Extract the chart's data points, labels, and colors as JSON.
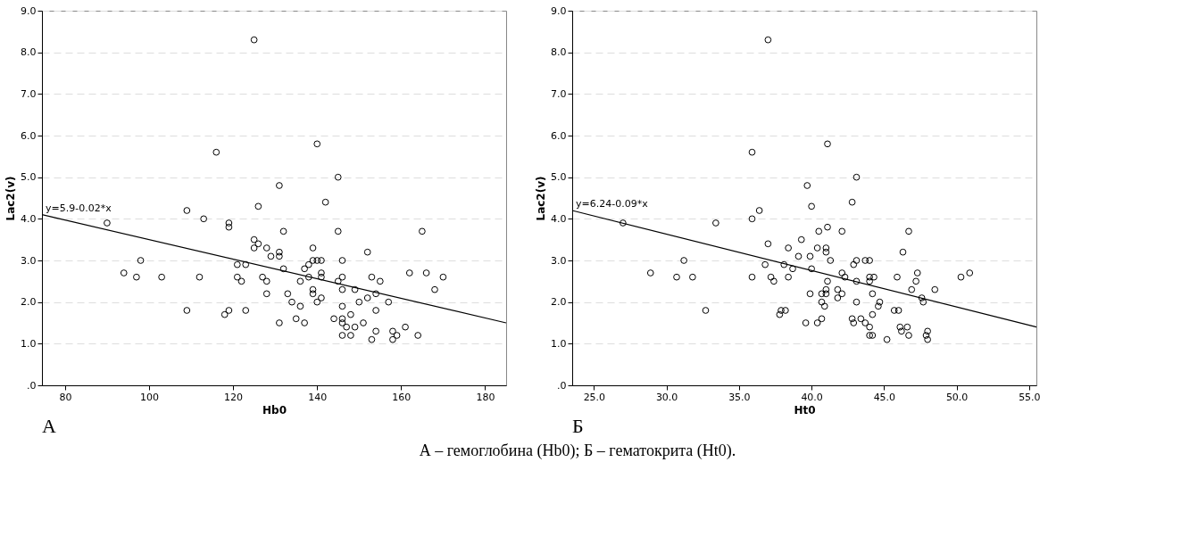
{
  "chart_data": [
    {
      "type": "scatter",
      "xlabel": "Hb0",
      "ylabel": "Lac2(v)",
      "xlim": [
        74.5,
        185
      ],
      "ylim": [
        0,
        9
      ],
      "xticks": [
        80,
        100,
        120,
        140,
        160,
        180
      ],
      "yticks": [
        {
          "value": 0,
          "label": ".0"
        },
        {
          "value": 1,
          "label": "1.0"
        },
        {
          "value": 2,
          "label": "2.0"
        },
        {
          "value": 3,
          "label": "3.0"
        },
        {
          "value": 4,
          "label": "4.0"
        },
        {
          "value": 5,
          "label": "5.0"
        },
        {
          "value": 6,
          "label": "6.0"
        },
        {
          "value": 7,
          "label": "7.0"
        },
        {
          "value": 8,
          "label": "8.0"
        },
        {
          "value": 9,
          "label": "9.0"
        }
      ],
      "grid": "y",
      "marker": "circle",
      "series": [
        {
          "color": "#000000",
          "x": [
            125,
            116,
            131,
            126,
            90,
            109,
            113,
            119,
            119,
            125,
            126,
            125,
            128,
            129,
            131,
            131,
            98,
            94,
            97,
            103,
            112,
            121,
            123,
            121,
            122,
            127,
            128,
            128,
            109,
            118,
            119,
            123,
            131,
            140,
            145,
            142,
            132,
            145,
            165,
            139,
            152,
            139,
            140,
            141,
            146,
            138,
            137,
            132,
            141,
            141,
            138,
            136,
            145,
            146,
            153,
            155,
            162,
            166,
            170,
            168,
            139,
            139,
            133,
            134,
            136,
            140,
            141,
            146,
            149,
            146,
            150,
            152,
            154,
            157,
            154,
            135,
            137,
            144,
            146,
            146,
            148,
            147,
            149,
            151,
            146,
            148,
            154,
            153,
            158,
            159,
            158,
            161,
            164
          ],
          "values": [
            8.3,
            5.6,
            4.8,
            4.3,
            3.9,
            4.2,
            4.0,
            3.9,
            3.8,
            3.5,
            3.4,
            3.3,
            3.3,
            3.1,
            3.2,
            3.1,
            3.0,
            2.7,
            2.6,
            2.6,
            2.6,
            2.9,
            2.9,
            2.6,
            2.5,
            2.6,
            2.5,
            2.2,
            1.8,
            1.7,
            1.8,
            1.8,
            1.5,
            5.8,
            5.0,
            4.4,
            3.7,
            3.7,
            3.7,
            3.3,
            3.2,
            3.0,
            3.0,
            3.0,
            3.0,
            2.9,
            2.8,
            2.8,
            2.7,
            2.6,
            2.6,
            2.5,
            2.5,
            2.6,
            2.6,
            2.5,
            2.7,
            2.7,
            2.6,
            2.3,
            2.3,
            2.2,
            2.2,
            2.0,
            1.9,
            2.0,
            2.1,
            2.3,
            2.3,
            1.9,
            2.0,
            2.1,
            2.2,
            2.0,
            1.8,
            1.6,
            1.5,
            1.6,
            1.6,
            1.5,
            1.7,
            1.4,
            1.4,
            1.5,
            1.2,
            1.2,
            1.3,
            1.1,
            1.3,
            1.2,
            1.1,
            1.4,
            1.2
          ]
        },
        {
          "type": "line",
          "marker": "none",
          "color": "#000000",
          "x": [
            74.5,
            185
          ],
          "values": [
            4.1,
            1.5
          ]
        }
      ],
      "annotations": [
        {
          "text": "y=5.9-0.02*x",
          "x": 74.5,
          "y": 4.1
        },
        "А",
        "А – гемоглобина (Hb0); Б – гематокрита (Ht0)."
      ]
    },
    {
      "type": "scatter",
      "xlabel": "Ht0",
      "ylabel": "Lac2(v)",
      "xlim": [
        23.5,
        55.5
      ],
      "ylim": [
        0,
        9
      ],
      "xticks": [
        {
          "value": 25,
          "label": "25.0"
        },
        {
          "value": 30,
          "label": "30.0"
        },
        {
          "value": 35,
          "label": "35.0"
        },
        {
          "value": 40,
          "label": "40.0"
        },
        {
          "value": 45,
          "label": "45.0"
        },
        {
          "value": 50,
          "label": "50.0"
        },
        {
          "value": 55,
          "label": "55.0"
        }
      ],
      "yticks": [
        {
          "value": 0,
          "label": ".0"
        },
        {
          "value": 1,
          "label": "1.0"
        },
        {
          "value": 2,
          "label": "2.0"
        },
        {
          "value": 3,
          "label": "3.0"
        },
        {
          "value": 4,
          "label": "4.0"
        },
        {
          "value": 5,
          "label": "5.0"
        },
        {
          "value": 6,
          "label": "6.0"
        },
        {
          "value": 7,
          "label": "7.0"
        },
        {
          "value": 8,
          "label": "8.0"
        },
        {
          "value": 9,
          "label": "9.0"
        }
      ],
      "grid": "y",
      "marker": "circle",
      "series": [
        {
          "color": "#000000",
          "x": [
            37.0,
            35.9,
            36.4,
            35.9,
            27.0,
            33.4,
            37.0,
            38.4,
            31.2,
            28.9,
            30.7,
            31.8,
            35.9,
            36.8,
            38.1,
            38.7,
            37.2,
            37.4,
            38.4,
            32.7,
            37.9,
            38.2,
            37.8,
            41.1,
            43.1,
            39.7,
            40.0,
            42.8,
            41.1,
            40.5,
            42.1,
            46.7,
            39.3,
            40.4,
            41.0,
            41.0,
            46.3,
            39.1,
            39.9,
            41.3,
            43.1,
            43.7,
            44.0,
            42.9,
            40.0,
            42.1,
            42.3,
            43.1,
            44.0,
            44.0,
            44.3,
            45.9,
            47.3,
            47.2,
            50.3,
            50.9,
            41.1,
            41.0,
            39.9,
            40.7,
            41.0,
            41.8,
            42.1,
            41.8,
            44.2,
            46.9,
            48.5,
            47.6,
            47.7,
            40.7,
            40.9,
            43.1,
            44.7,
            44.6,
            45.7,
            46.0,
            39.6,
            40.4,
            40.7,
            42.8,
            42.9,
            43.4,
            43.7,
            44.2,
            44.0,
            44.0,
            44.2,
            45.2,
            46.1,
            46.2,
            46.6,
            46.7,
            48.0,
            47.9,
            48.0
          ],
          "values": [
            8.3,
            5.6,
            4.2,
            4.0,
            3.9,
            3.9,
            3.4,
            3.3,
            3.0,
            2.7,
            2.6,
            2.6,
            2.6,
            2.9,
            2.9,
            2.8,
            2.6,
            2.5,
            2.6,
            1.8,
            1.8,
            1.8,
            1.7,
            5.8,
            5.0,
            4.8,
            4.3,
            4.4,
            3.8,
            3.7,
            3.7,
            3.7,
            3.5,
            3.3,
            3.3,
            3.2,
            3.2,
            3.1,
            3.1,
            3.0,
            3.0,
            3.0,
            3.0,
            2.9,
            2.8,
            2.7,
            2.6,
            2.5,
            2.5,
            2.6,
            2.6,
            2.6,
            2.7,
            2.5,
            2.6,
            2.7,
            2.5,
            2.3,
            2.2,
            2.2,
            2.2,
            2.3,
            2.2,
            2.1,
            2.2,
            2.3,
            2.3,
            2.1,
            2.0,
            2.0,
            1.9,
            2.0,
            2.0,
            1.9,
            1.8,
            1.8,
            1.5,
            1.5,
            1.6,
            1.6,
            1.5,
            1.6,
            1.5,
            1.7,
            1.4,
            1.2,
            1.2,
            1.1,
            1.4,
            1.3,
            1.4,
            1.2,
            1.3,
            1.2,
            1.1
          ]
        },
        {
          "type": "line",
          "marker": "none",
          "color": "#000000",
          "x": [
            23.5,
            55.5
          ],
          "values": [
            4.2,
            1.4
          ]
        }
      ],
      "annotations": [
        {
          "text": "y=6.24-0.09*x",
          "x": 23.5,
          "y": 4.2
        },
        "Б"
      ]
    }
  ]
}
